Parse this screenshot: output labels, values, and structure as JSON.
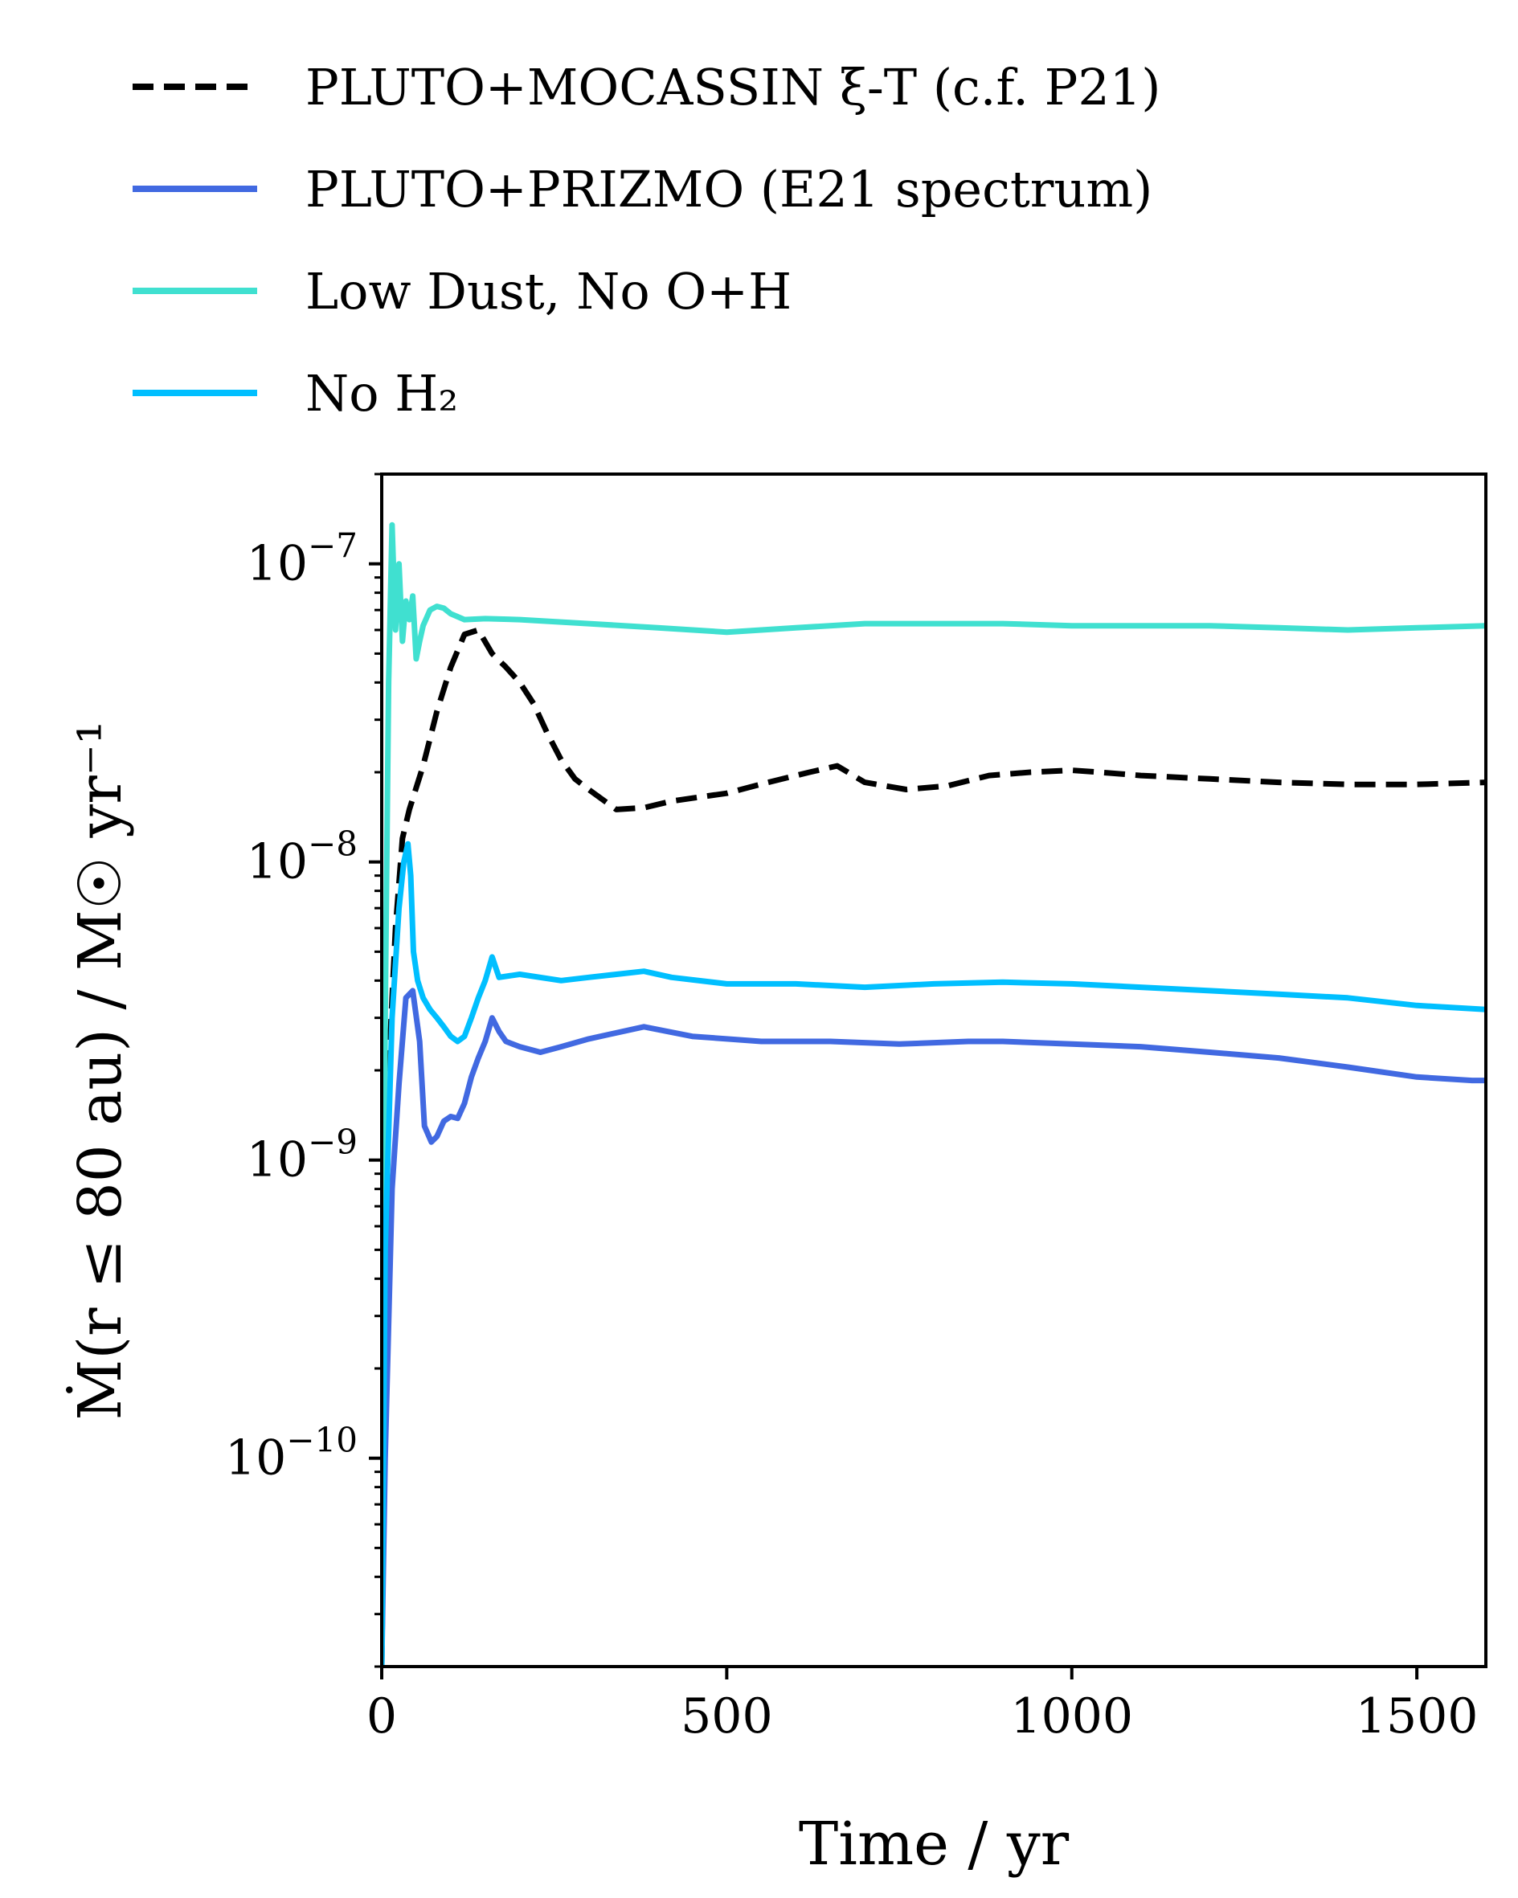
{
  "chart_data": {
    "type": "line",
    "title": "",
    "xlabel": "Time / yr",
    "ylabel": "Ṁ(r ≤ 80 au) / M☉ yr⁻¹",
    "xlim": [
      0,
      1600
    ],
    "ylim": [
      2e-11,
      2e-07
    ],
    "yscale": "log",
    "grid": false,
    "legend_position": "above-left",
    "x_ticks": [
      0,
      500,
      1000,
      1500
    ],
    "x_tick_labels": [
      "0",
      "500",
      "1000",
      "1500"
    ],
    "y_ticks": [
      1e-10,
      1e-09,
      1e-08,
      1e-07
    ],
    "y_tick_labels": [
      {
        "base": "10",
        "exp": "−10"
      },
      {
        "base": "10",
        "exp": "−9"
      },
      {
        "base": "10",
        "exp": "−8"
      },
      {
        "base": "10",
        "exp": "−7"
      }
    ],
    "series": [
      {
        "name": "PLUTO+MOCASSIN ξ-T (c.f. P21)",
        "color": "#000000",
        "dash": "dashed",
        "x": [
          0,
          10,
          20,
          30,
          40,
          60,
          80,
          100,
          120,
          140,
          160,
          180,
          200,
          220,
          240,
          260,
          280,
          300,
          340,
          380,
          420,
          460,
          500,
          560,
          620,
          660,
          700,
          760,
          820,
          880,
          940,
          1000,
          1040,
          1100,
          1200,
          1300,
          1400,
          1500,
          1600
        ],
        "values": [
          2e-11,
          2e-09,
          6e-09,
          1.2e-08,
          1.5e-08,
          2.1e-08,
          3.2e-08,
          4.5e-08,
          5.8e-08,
          6e-08,
          5e-08,
          4.5e-08,
          4e-08,
          3.4e-08,
          2.7e-08,
          2.2e-08,
          1.9e-08,
          1.75e-08,
          1.5e-08,
          1.52e-08,
          1.6e-08,
          1.65e-08,
          1.7e-08,
          1.85e-08,
          2e-08,
          2.1e-08,
          1.85e-08,
          1.75e-08,
          1.8e-08,
          1.95e-08,
          2e-08,
          2.03e-08,
          2e-08,
          1.95e-08,
          1.9e-08,
          1.85e-08,
          1.82e-08,
          1.82e-08,
          1.85e-08
        ]
      },
      {
        "name": "PLUTO+PRIZMO (E21 spectrum)",
        "color": "#4169e1",
        "dash": "solid",
        "x": [
          0,
          5,
          15,
          25,
          35,
          45,
          55,
          62,
          72,
          80,
          90,
          100,
          110,
          120,
          130,
          140,
          150,
          160,
          170,
          180,
          200,
          230,
          260,
          300,
          380,
          450,
          550,
          650,
          750,
          850,
          900,
          1000,
          1100,
          1200,
          1300,
          1400,
          1500,
          1580,
          1600
        ],
        "values": [
          2e-11,
          1e-10,
          8e-10,
          1.8e-09,
          3.5e-09,
          3.7e-09,
          2.5e-09,
          1.3e-09,
          1.15e-09,
          1.2e-09,
          1.35e-09,
          1.4e-09,
          1.38e-09,
          1.55e-09,
          1.9e-09,
          2.2e-09,
          2.5e-09,
          3e-09,
          2.7e-09,
          2.5e-09,
          2.4e-09,
          2.3e-09,
          2.4e-09,
          2.55e-09,
          2.8e-09,
          2.6e-09,
          2.5e-09,
          2.5e-09,
          2.45e-09,
          2.5e-09,
          2.5e-09,
          2.45e-09,
          2.4e-09,
          2.3e-09,
          2.2e-09,
          2.05e-09,
          1.9e-09,
          1.85e-09,
          1.85e-09
        ]
      },
      {
        "name": "Low Dust, No O+H",
        "color": "#40e0d0",
        "dash": "solid",
        "x": [
          0,
          5,
          10,
          15,
          20,
          25,
          30,
          35,
          40,
          45,
          50,
          55,
          60,
          70,
          80,
          90,
          100,
          120,
          150,
          200,
          300,
          400,
          500,
          600,
          700,
          800,
          900,
          1000,
          1100,
          1200,
          1300,
          1400,
          1500,
          1600
        ],
        "values": [
          2e-11,
          3e-09,
          4e-08,
          1.35e-07,
          6e-08,
          1e-07,
          5.5e-08,
          7.5e-08,
          6.5e-08,
          7.8e-08,
          4.8e-08,
          5.5e-08,
          6.2e-08,
          7e-08,
          7.2e-08,
          7.1e-08,
          6.8e-08,
          6.5e-08,
          6.55e-08,
          6.5e-08,
          6.3e-08,
          6.1e-08,
          5.9e-08,
          6.1e-08,
          6.3e-08,
          6.3e-08,
          6.3e-08,
          6.2e-08,
          6.2e-08,
          6.2e-08,
          6.1e-08,
          6e-08,
          6.1e-08,
          6.2e-08
        ]
      },
      {
        "name": "No H₂",
        "color": "#00bfff",
        "dash": "solid",
        "x": [
          0,
          5,
          15,
          25,
          32,
          38,
          42,
          46,
          52,
          60,
          70,
          80,
          90,
          100,
          110,
          120,
          130,
          140,
          150,
          160,
          170,
          200,
          260,
          300,
          380,
          420,
          500,
          600,
          700,
          800,
          900,
          1000,
          1100,
          1200,
          1300,
          1400,
          1500,
          1600
        ],
        "values": [
          2e-11,
          5e-10,
          3e-09,
          7e-09,
          1e-08,
          1.15e-08,
          9e-09,
          5e-09,
          4e-09,
          3.5e-09,
          3.2e-09,
          3e-09,
          2.8e-09,
          2.6e-09,
          2.5e-09,
          2.6e-09,
          3e-09,
          3.5e-09,
          4e-09,
          4.8e-09,
          4.1e-09,
          4.2e-09,
          4e-09,
          4.1e-09,
          4.3e-09,
          4.1e-09,
          3.9e-09,
          3.9e-09,
          3.8e-09,
          3.9e-09,
          3.95e-09,
          3.9e-09,
          3.8e-09,
          3.7e-09,
          3.6e-09,
          3.5e-09,
          3.3e-09,
          3.2e-09
        ]
      }
    ]
  }
}
